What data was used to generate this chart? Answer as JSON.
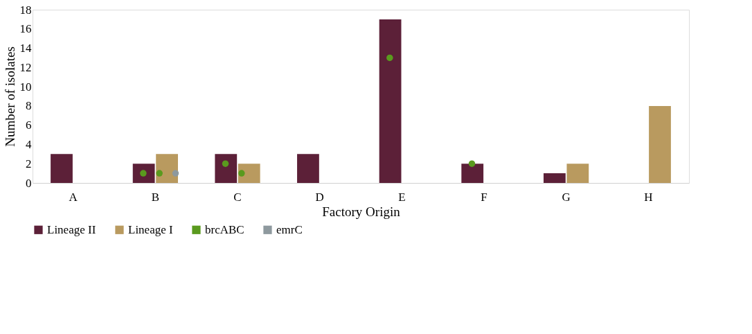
{
  "chart_data": {
    "type": "bar",
    "xlabel": "Factory Origin",
    "ylabel": "Number of isolates",
    "categories": [
      "A",
      "B",
      "C",
      "D",
      "E",
      "F",
      "G",
      "H"
    ],
    "series": [
      {
        "name": "Lineage II",
        "color": "#5c2038",
        "values": [
          3,
          2,
          3,
          3,
          17,
          2,
          1,
          null
        ]
      },
      {
        "name": "Lineage I",
        "color": "#b99a5f",
        "values": [
          null,
          3,
          2,
          null,
          null,
          null,
          2,
          8
        ]
      },
      {
        "name": "brcABC",
        "type": "scatter",
        "color": "#5a9a1e",
        "values": [
          null,
          1,
          2,
          null,
          13,
          2,
          null,
          null
        ]
      },
      {
        "type": "scatter",
        "color": "#5a9a1e",
        "values": [
          null,
          1,
          1,
          null,
          null,
          null,
          null,
          null
        ]
      },
      {
        "name": "emrC",
        "type": "scatter",
        "color": "#8e999e",
        "values": [
          null,
          1,
          null,
          null,
          null,
          null,
          null,
          null
        ]
      }
    ],
    "ylim": [
      0,
      18
    ],
    "yticks": [
      0,
      2,
      4,
      6,
      8,
      10,
      12,
      14,
      16,
      18
    ],
    "grid": false,
    "legend": "bottom",
    "marker": "circle"
  }
}
